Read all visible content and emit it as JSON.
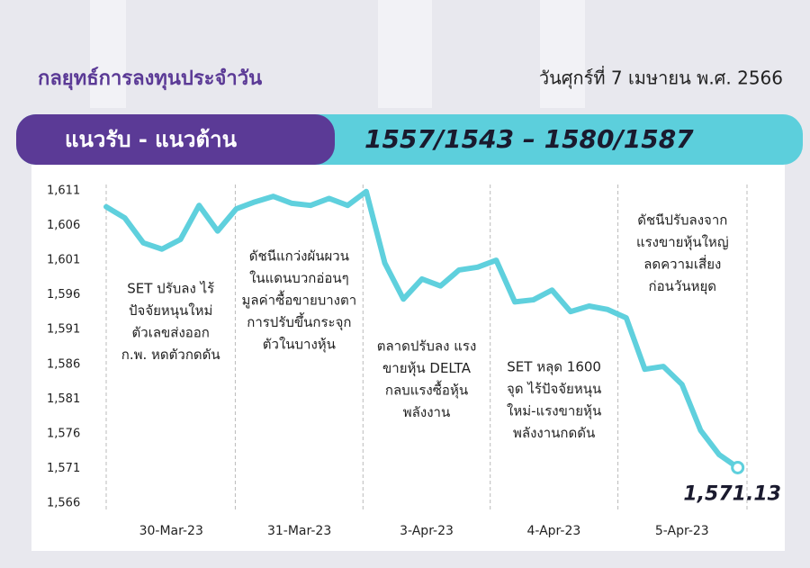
{
  "header": {
    "title": "กลยุทธ์การลงทุนประจำวัน",
    "date": "วันศุกร์ที่ 7 เมษายน พ.ศ. 2566",
    "band_label": "แนวรับ - แนวต้าน",
    "band_value": "1557/1543 – 1580/1587"
  },
  "chart_data": {
    "type": "line",
    "x": [
      0,
      1,
      2,
      3,
      4,
      5,
      6,
      7,
      8,
      9,
      10,
      11,
      12,
      13,
      14,
      15,
      16,
      17,
      18,
      19,
      20,
      21,
      22,
      23,
      24,
      25,
      26,
      27,
      28,
      29,
      30,
      31,
      32,
      33,
      34
    ],
    "series": [
      {
        "color": "#5fd0dd",
        "values": [
          1608.7,
          1607.1,
          1603.5,
          1602.6,
          1604.0,
          1608.9,
          1605.2,
          1608.4,
          1609.4,
          1610.2,
          1609.2,
          1608.9,
          1609.9,
          1608.9,
          1610.9,
          1600.6,
          1595.4,
          1598.3,
          1597.3,
          1599.6,
          1600.0,
          1601.0,
          1595.0,
          1595.3,
          1596.7,
          1593.6,
          1594.4,
          1593.9,
          1592.7,
          1585.3,
          1585.7,
          1583.1,
          1576.5,
          1573.0,
          1571.13
        ],
        "value_labels": [
          null,
          null,
          null,
          null,
          null,
          null,
          null,
          null,
          null,
          null,
          null,
          null,
          null,
          null,
          null,
          null,
          null,
          null,
          null,
          null,
          null,
          null,
          null,
          null,
          null,
          null,
          null,
          null,
          null,
          null,
          null,
          null,
          null,
          null,
          "1,571.13"
        ]
      }
    ],
    "xlim": [
      0,
      34.5
    ],
    "xticks": [
      {
        "value": 3.5,
        "label": "30-Mar-23"
      },
      {
        "value": 10.4,
        "label": "31-Mar-23"
      },
      {
        "value": 17.25,
        "label": "3-Apr-23"
      },
      {
        "value": 24.1,
        "label": "4-Apr-23"
      },
      {
        "value": 31.0,
        "label": "5-Apr-23"
      }
    ],
    "ylim": [
      1566,
      1611
    ],
    "yticks": [
      {
        "value": 1611,
        "label": "1,611"
      },
      {
        "value": 1606,
        "label": "1,606"
      },
      {
        "value": 1601,
        "label": "1,601"
      },
      {
        "value": 1596,
        "label": "1,596"
      },
      {
        "value": 1591,
        "label": "1,591"
      },
      {
        "value": 1586,
        "label": "1,586"
      },
      {
        "value": 1581,
        "label": "1,581"
      },
      {
        "value": 1576,
        "label": "1,576"
      },
      {
        "value": 1571,
        "label": "1,571"
      },
      {
        "value": 1566,
        "label": "1,566"
      }
    ],
    "grid": false,
    "annotations": [
      [
        "SET ปรับลง ไร้",
        "ปัจจัยหนุนใหม่",
        "ตัวเลขส่งออก",
        "ก.พ. หดตัวกดดัน"
      ],
      [
        "ดัชนีแกว่งผันผวน",
        "ในแดนบวกอ่อนๆ",
        "มูลค่าซื้อขายบางตา",
        "การปรับขึ้นกระจุก",
        "ตัวในบางหุ้น"
      ],
      [
        "ตลาดปรับลง แรง",
        "ขายหุ้น DELTA",
        "กลบแรงซื้อหุ้น",
        "พลังงาน"
      ],
      [
        "SET หลุด 1600",
        "จุด ไร้ปัจจัยหนุน",
        "ใหม่-แรงขายหุ้น",
        "พลังงานกดดัน"
      ],
      [
        "ดัชนีปรับลงจาก",
        "แรงขายหุ้นใหญ่",
        "ลดความเสี่ยง",
        "ก่อนวันหยุด"
      ]
    ]
  }
}
